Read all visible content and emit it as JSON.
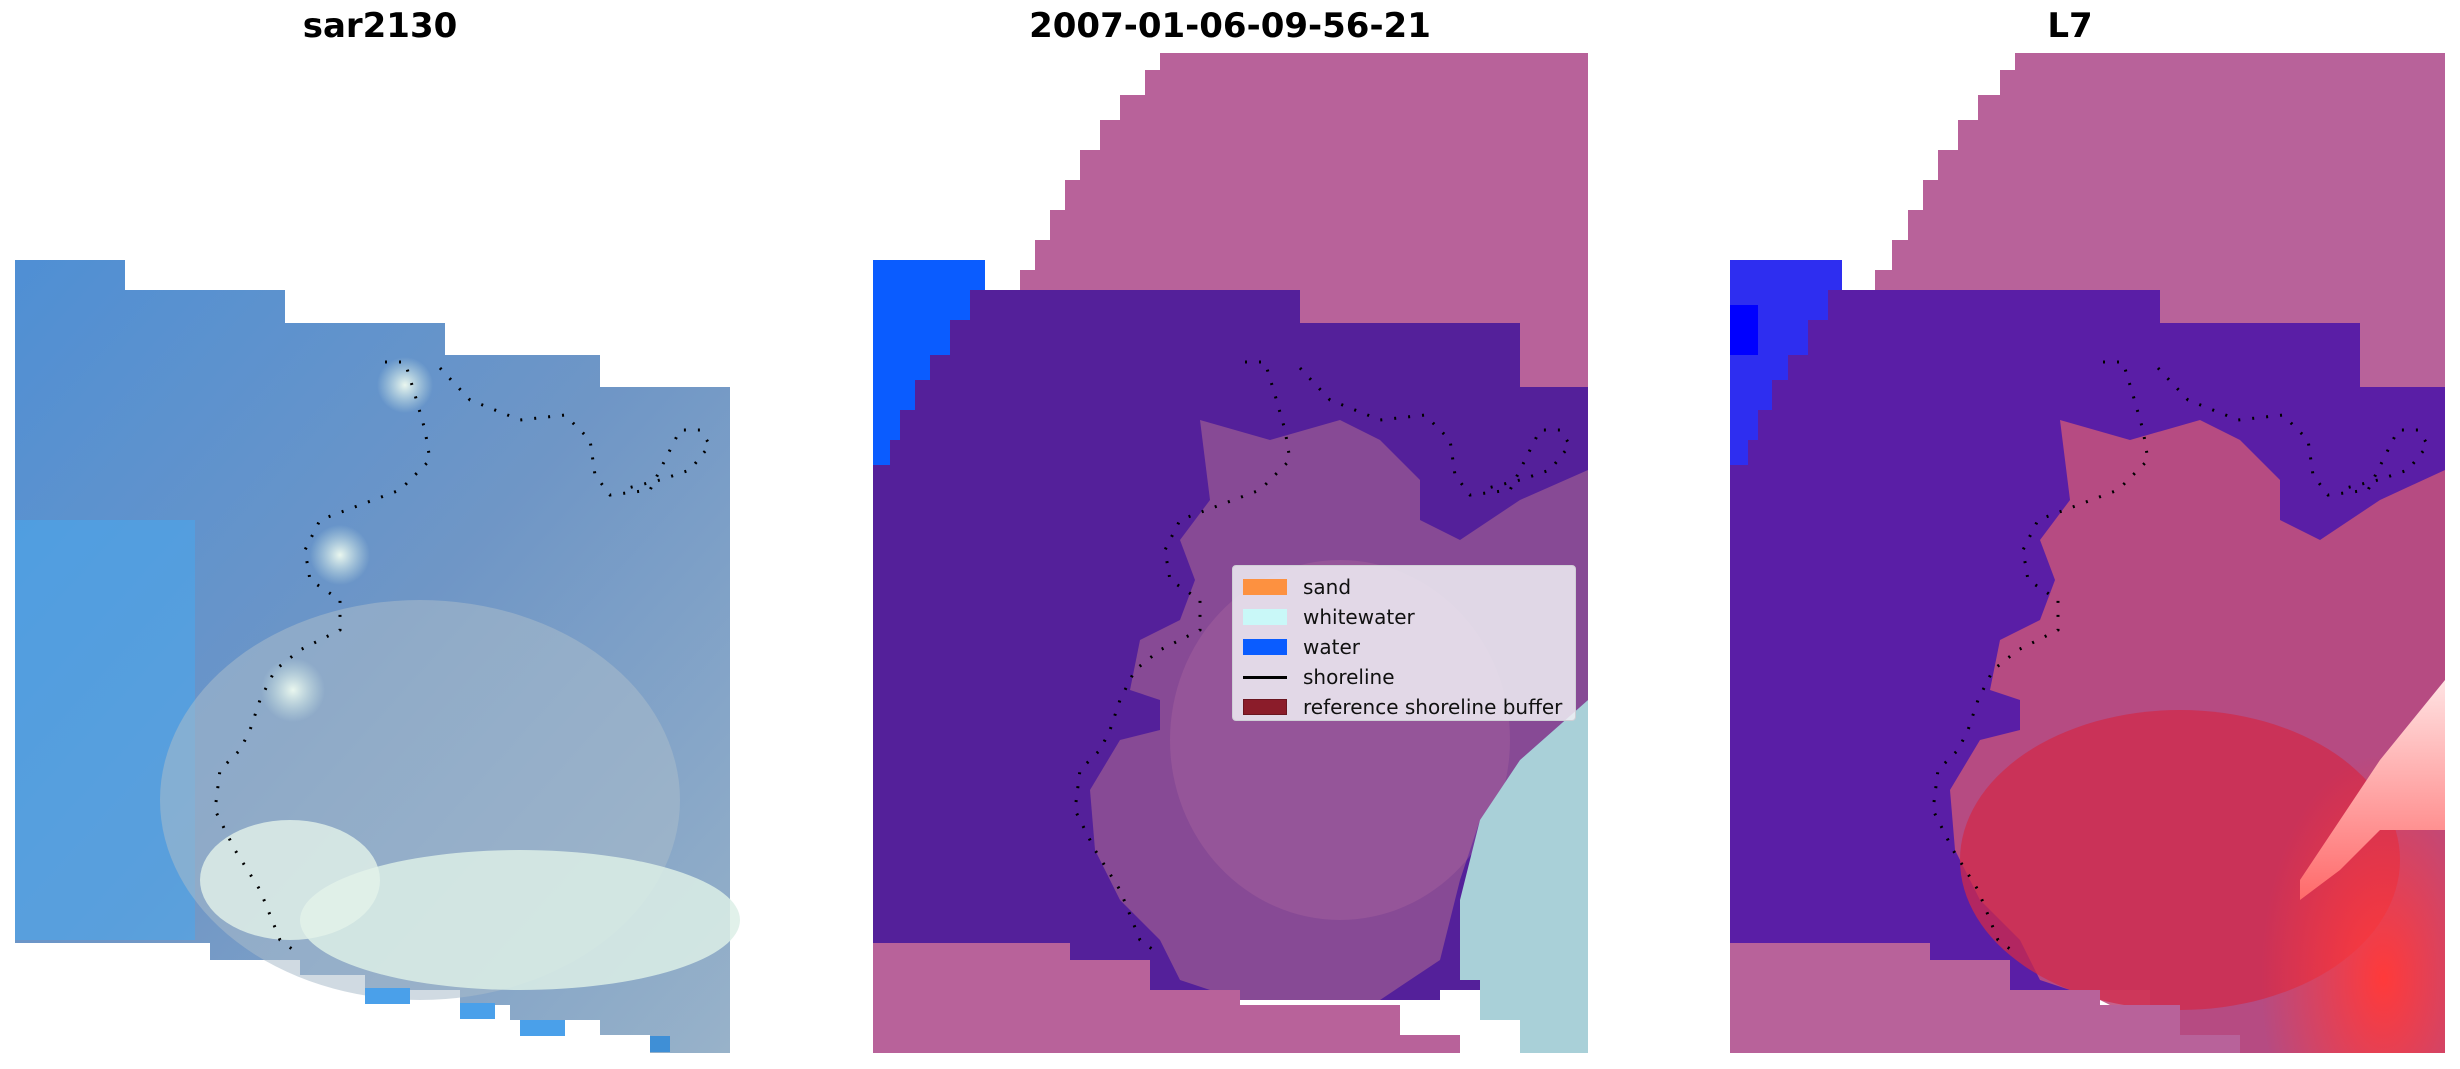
{
  "panels": [
    {
      "title": "sar2130"
    },
    {
      "title": "2007-01-06-09-56-21"
    },
    {
      "title": "L7"
    }
  ],
  "legend": {
    "items": [
      {
        "label": "sand",
        "color": "#fd9140",
        "kind": "patch"
      },
      {
        "label": "whitewater",
        "color": "#c9f8f8",
        "kind": "patch"
      },
      {
        "label": "water",
        "color": "#0a5cff",
        "kind": "patch"
      },
      {
        "label": "shoreline",
        "color": "#000000",
        "kind": "line"
      },
      {
        "label": "reference shoreline buffer",
        "color": "#8b1c2a",
        "kind": "patch"
      }
    ]
  },
  "colors": {
    "reference_buffer_overlay": "#b8629a",
    "water_class": "#0a5cff",
    "sea_purple": "#54209a",
    "rgb_sea_blue": "#5b8fc8",
    "rgb_whitewater": "#cfe9e4",
    "ir_red": "#d0203c"
  }
}
